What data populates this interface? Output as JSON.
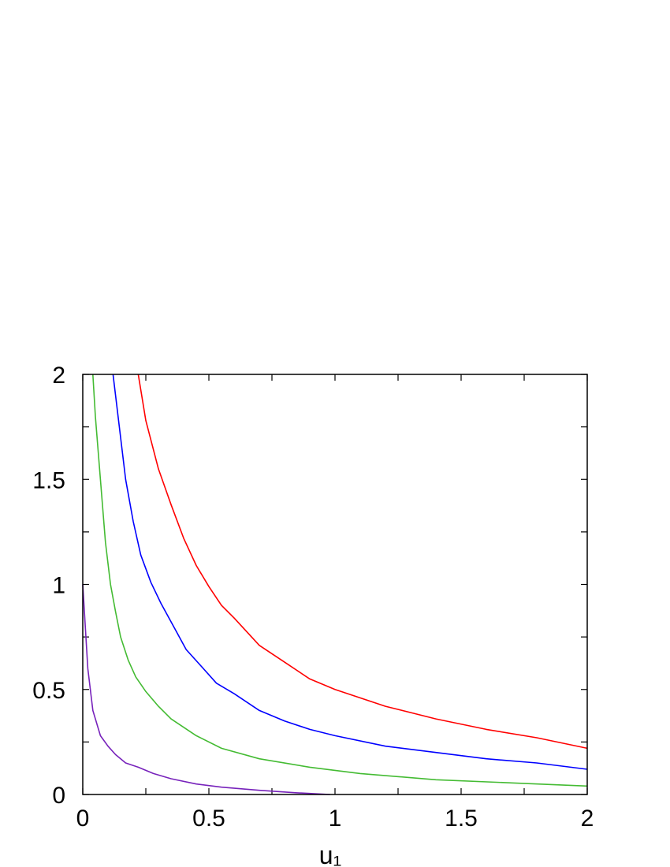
{
  "chart_data": {
    "type": "line",
    "title": "",
    "xlabel": "u₁",
    "ylabel": "",
    "xlim": [
      0,
      2
    ],
    "ylim": [
      0,
      2
    ],
    "x_ticks": [
      "0",
      "0.5",
      "1",
      "1.5",
      "2"
    ],
    "y_ticks": [
      "0",
      "0.5",
      "1",
      "1.5",
      "2"
    ],
    "grid": false,
    "series": [
      {
        "color": "#ff0000",
        "points": [
          [
            0.22,
            2.0
          ],
          [
            0.25,
            1.78
          ],
          [
            0.3,
            1.55
          ],
          [
            0.35,
            1.38
          ],
          [
            0.4,
            1.22
          ],
          [
            0.45,
            1.09
          ],
          [
            0.5,
            0.99
          ],
          [
            0.55,
            0.9
          ],
          [
            0.6,
            0.84
          ],
          [
            0.7,
            0.71
          ],
          [
            0.8,
            0.63
          ],
          [
            0.9,
            0.55
          ],
          [
            1.0,
            0.5
          ],
          [
            1.2,
            0.42
          ],
          [
            1.4,
            0.36
          ],
          [
            1.6,
            0.31
          ],
          [
            1.8,
            0.27
          ],
          [
            2.0,
            0.22
          ]
        ]
      },
      {
        "color": "#0000ff",
        "points": [
          [
            0.12,
            2.0
          ],
          [
            0.14,
            1.8
          ],
          [
            0.17,
            1.5
          ],
          [
            0.2,
            1.3
          ],
          [
            0.23,
            1.14
          ],
          [
            0.27,
            1.01
          ],
          [
            0.31,
            0.91
          ],
          [
            0.36,
            0.8
          ],
          [
            0.41,
            0.69
          ],
          [
            0.47,
            0.61
          ],
          [
            0.53,
            0.53
          ],
          [
            0.6,
            0.48
          ],
          [
            0.7,
            0.4
          ],
          [
            0.8,
            0.35
          ],
          [
            0.9,
            0.31
          ],
          [
            1.0,
            0.28
          ],
          [
            1.2,
            0.23
          ],
          [
            1.4,
            0.2
          ],
          [
            1.6,
            0.17
          ],
          [
            1.8,
            0.15
          ],
          [
            2.0,
            0.12
          ]
        ]
      },
      {
        "color": "#44bb33",
        "points": [
          [
            0.04,
            2.0
          ],
          [
            0.05,
            1.8
          ],
          [
            0.07,
            1.5
          ],
          [
            0.09,
            1.2
          ],
          [
            0.11,
            1.0
          ],
          [
            0.13,
            0.87
          ],
          [
            0.15,
            0.75
          ],
          [
            0.18,
            0.64
          ],
          [
            0.21,
            0.56
          ],
          [
            0.25,
            0.49
          ],
          [
            0.3,
            0.42
          ],
          [
            0.35,
            0.36
          ],
          [
            0.45,
            0.28
          ],
          [
            0.55,
            0.22
          ],
          [
            0.7,
            0.17
          ],
          [
            0.9,
            0.13
          ],
          [
            1.1,
            0.1
          ],
          [
            1.4,
            0.07
          ],
          [
            1.7,
            0.055
          ],
          [
            2.0,
            0.04
          ]
        ]
      },
      {
        "color": "#7722bb",
        "points": [
          [
            0.0,
            1.0
          ],
          [
            0.01,
            0.8
          ],
          [
            0.02,
            0.6
          ],
          [
            0.04,
            0.4
          ],
          [
            0.07,
            0.28
          ],
          [
            0.1,
            0.23
          ],
          [
            0.13,
            0.19
          ],
          [
            0.17,
            0.15
          ],
          [
            0.22,
            0.13
          ],
          [
            0.28,
            0.1
          ],
          [
            0.35,
            0.075
          ],
          [
            0.45,
            0.05
          ],
          [
            0.55,
            0.035
          ],
          [
            0.7,
            0.02
          ],
          [
            0.85,
            0.008
          ],
          [
            0.98,
            0.0
          ]
        ]
      }
    ]
  }
}
